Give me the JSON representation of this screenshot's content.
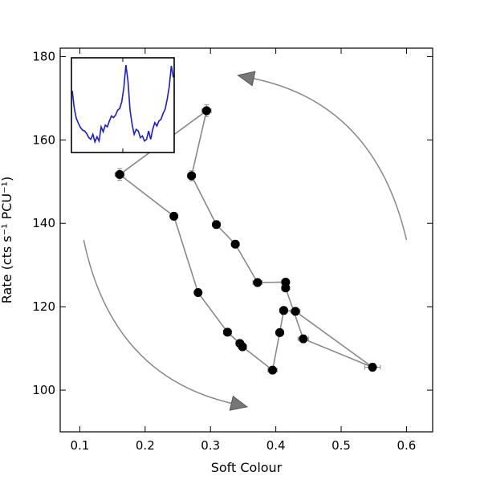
{
  "chart_data": {
    "type": "scatter",
    "title": "",
    "xlabel": "Soft Colour",
    "ylabel": "Rate (cts s⁻¹ PCU⁻¹)",
    "xlim": [
      0.07,
      0.64
    ],
    "ylim": [
      90,
      182
    ],
    "xticks": [
      0.1,
      0.2,
      0.3,
      0.4,
      0.5,
      0.6
    ],
    "xtick_labels": [
      "0.1",
      "0.2",
      "0.3",
      "0.4",
      "0.5",
      "0.6"
    ],
    "yticks": [
      100,
      120,
      140,
      160,
      180
    ],
    "ytick_labels": [
      "100",
      "120",
      "140",
      "160",
      "180"
    ],
    "grid": false,
    "legend": "none",
    "colors": {
      "points": "#000000",
      "path": "#888888",
      "arrows": "#888888",
      "arrowhead": "#777777",
      "inset_line": "#1a1adf"
    },
    "series": [
      {
        "x": [
          0.294,
          0.161,
          0.244,
          0.281,
          0.326,
          0.345,
          0.349,
          0.395,
          0.406,
          0.412,
          0.43,
          0.548,
          0.442,
          0.415,
          0.415,
          0.372,
          0.338,
          0.309,
          0.271,
          0.294
        ],
        "y": [
          167,
          151.7,
          141.7,
          123.4,
          113.9,
          111.2,
          110.4,
          104.8,
          113.8,
          119.1,
          118.9,
          105.5,
          112.3,
          124.5,
          125.9,
          125.8,
          135.0,
          139.7,
          151.4,
          167
        ],
        "xerr": [
          0.007,
          0.007,
          0.005,
          0.005,
          0.006,
          0.006,
          0.006,
          0.007,
          0.006,
          0.006,
          0.007,
          0.012,
          0.008,
          0.006,
          0.006,
          0.007,
          0.006,
          0.006,
          0.006,
          0.007
        ],
        "yerr": [
          1.4,
          1.4,
          0.9,
          0.9,
          0.9,
          0.9,
          0.9,
          0.9,
          0.9,
          0.9,
          0.9,
          0.9,
          0.9,
          0.9,
          0.9,
          0.9,
          0.9,
          0.9,
          1.2,
          1.4
        ]
      }
    ],
    "annotations": [
      {
        "kind": "arrow",
        "direction": "counterclockwise",
        "from": [
          0.6,
          136
        ],
        "to": [
          0.342,
          175.5
        ]
      },
      {
        "kind": "arrow",
        "direction": "counterclockwise",
        "from": [
          0.106,
          136
        ],
        "to": [
          0.356,
          96
        ]
      }
    ],
    "inset": {
      "type": "line",
      "values": [
        0.68,
        0.47,
        0.35,
        0.29,
        0.24,
        0.21,
        0.2,
        0.17,
        0.12,
        0.1,
        0.16,
        0.07,
        0.13,
        0.08,
        0.25,
        0.19,
        0.27,
        0.25,
        0.32,
        0.38,
        0.36,
        0.39,
        0.45,
        0.47,
        0.55,
        0.72,
        0.99,
        0.8,
        0.45,
        0.28,
        0.16,
        0.22,
        0.2,
        0.12,
        0.14,
        0.08,
        0.1,
        0.2,
        0.1,
        0.22,
        0.3,
        0.26,
        0.32,
        0.34,
        0.41,
        0.46,
        0.58,
        0.73,
        0.98,
        0.84
      ]
    }
  }
}
